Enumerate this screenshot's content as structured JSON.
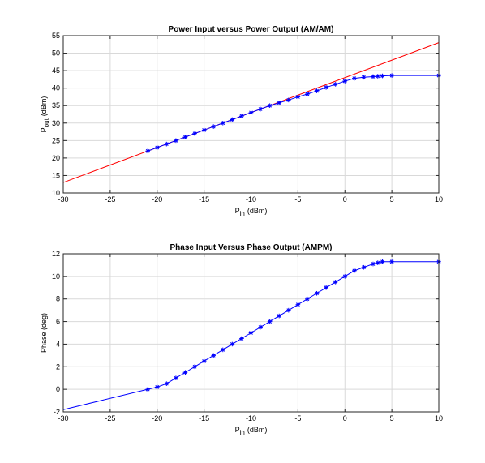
{
  "chart_data": [
    {
      "type": "line",
      "title": "Power Input versus Power Output (AM/AM)",
      "xlabel_main": "P",
      "xlabel_sub": "in",
      "xlabel_unit": "(dBm)",
      "ylabel_main": "P",
      "ylabel_sub": "out",
      "ylabel_unit": "(dBm)",
      "xlim": [
        -30,
        10
      ],
      "ylim": [
        10,
        55
      ],
      "xticks": [
        -30,
        -25,
        -20,
        -15,
        -10,
        -5,
        0,
        5,
        10
      ],
      "yticks": [
        10,
        15,
        20,
        25,
        30,
        35,
        40,
        45,
        50,
        55
      ],
      "grid": true,
      "series": [
        {
          "color": "#ff0000",
          "marker": "none",
          "x": [
            -30,
            10
          ],
          "y": [
            13,
            53
          ]
        },
        {
          "color": "#0000ff",
          "marker": "asterisk",
          "x": [
            -21,
            -20,
            -19,
            -18,
            -17,
            -16,
            -15,
            -14,
            -13,
            -12,
            -11,
            -10,
            -9,
            -8,
            -7,
            -6,
            -5,
            -4,
            -3,
            -2,
            -1,
            0,
            1,
            2,
            3,
            3.5,
            4,
            5,
            10
          ],
          "y": [
            22,
            23,
            24,
            25,
            26,
            27,
            28,
            29,
            30,
            31,
            32,
            33,
            34,
            35,
            35.8,
            36.6,
            37.5,
            38.3,
            39.2,
            40.2,
            41.1,
            42,
            42.8,
            43.1,
            43.3,
            43.4,
            43.5,
            43.6,
            43.6
          ]
        }
      ]
    },
    {
      "type": "line",
      "title": "Phase Input Versus Phase Output (AMPM)",
      "xlabel_main": "P",
      "xlabel_sub": "in",
      "xlabel_unit": "(dBm)",
      "ylabel": "Phase (deg)",
      "xlim": [
        -30,
        10
      ],
      "ylim": [
        -2,
        12
      ],
      "xticks": [
        -30,
        -25,
        -20,
        -15,
        -10,
        -5,
        0,
        5,
        10
      ],
      "yticks": [
        -2,
        0,
        2,
        4,
        6,
        8,
        10,
        12
      ],
      "grid": true,
      "series": [
        {
          "color": "#0000ff",
          "marker": "none",
          "x": [
            -30,
            -21
          ],
          "y": [
            -1.8,
            0
          ]
        },
        {
          "color": "#0000ff",
          "marker": "asterisk",
          "x": [
            -21,
            -20,
            -19,
            -18,
            -17,
            -16,
            -15,
            -14,
            -13,
            -12,
            -11,
            -10,
            -9,
            -8,
            -7,
            -6,
            -5,
            -4,
            -3,
            -2,
            -1,
            0,
            1,
            2,
            3,
            3.5,
            4,
            5,
            10
          ],
          "y": [
            0,
            0.2,
            0.5,
            1,
            1.5,
            2,
            2.5,
            3,
            3.5,
            4,
            4.5,
            5,
            5.5,
            6,
            6.5,
            7,
            7.5,
            8,
            8.5,
            9,
            9.5,
            10,
            10.5,
            10.8,
            11.1,
            11.2,
            11.3,
            11.3,
            11.3
          ]
        }
      ]
    }
  ]
}
